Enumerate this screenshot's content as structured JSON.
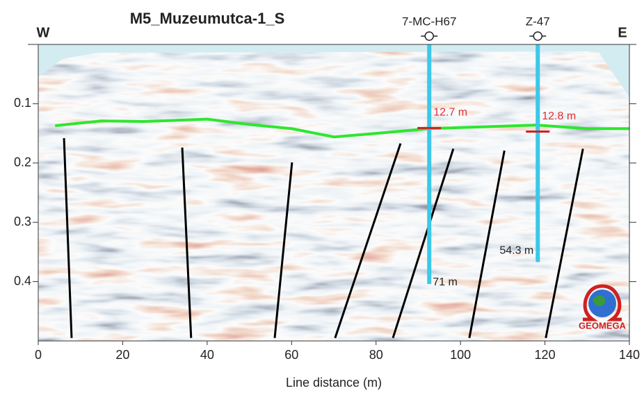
{
  "chart_data": {
    "type": "seismic-section",
    "title": "M5_Muzeumutca-1_S",
    "x_label": "Line distance (m)",
    "direction_labels": [
      "W",
      "E"
    ],
    "xlim": [
      0,
      140
    ],
    "ylim": [
      0,
      0.5
    ],
    "y_inverted": true,
    "xticks": [
      0,
      20,
      40,
      60,
      80,
      100,
      120,
      140
    ],
    "yticks": [
      0.1,
      0.2,
      0.3,
      0.4
    ],
    "horizon": {
      "color": "#2ee62e",
      "x": [
        4,
        15,
        25,
        40,
        50,
        60,
        70,
        80,
        92.6,
        105,
        118,
        130,
        140
      ],
      "values": [
        0.137,
        0.129,
        0.13,
        0.126,
        0.135,
        0.142,
        0.156,
        0.15,
        0.142,
        0.139,
        0.136,
        0.142,
        0.142
      ]
    },
    "wells": [
      {
        "name": "7-MC-H67",
        "x": 92.6,
        "bottom": 0.404,
        "top_depth": 0.141,
        "top_label": "12.7 m",
        "bottom_label": "71 m"
      },
      {
        "name": "Z-47",
        "x": 118.3,
        "bottom": 0.367,
        "top_depth": 0.147,
        "top_label": "12.8 m",
        "bottom_label": "54.3 m"
      }
    ],
    "well_color": "#3cc8e8",
    "marker_color": "#cc2222",
    "faults": [
      {
        "x": [
          6.1,
          7.9
        ],
        "values": [
          0.158,
          0.495
        ]
      },
      {
        "x": [
          34.1,
          36.2
        ],
        "values": [
          0.174,
          0.495
        ]
      },
      {
        "x": [
          60.1,
          56.0
        ],
        "values": [
          0.199,
          0.495
        ]
      },
      {
        "x": [
          85.8,
          70.3
        ],
        "values": [
          0.167,
          0.495
        ]
      },
      {
        "x": [
          98.3,
          84.0
        ],
        "values": [
          0.176,
          0.495
        ]
      },
      {
        "x": [
          110.4,
          102.1
        ],
        "values": [
          0.179,
          0.495
        ]
      },
      {
        "x": [
          129.0,
          120.2
        ],
        "values": [
          0.176,
          0.495
        ]
      }
    ],
    "fault_color": "#000000",
    "logo_text": "GEOMEGA"
  }
}
